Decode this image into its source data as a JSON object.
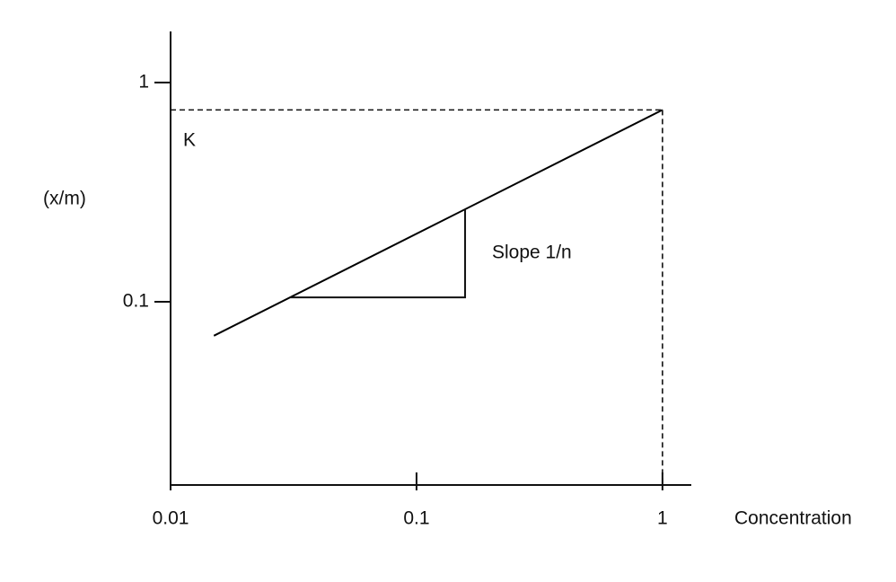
{
  "chart_data": {
    "type": "line",
    "x_label": "Concentration",
    "y_label": "(x/m)",
    "x": [
      0.015,
      1
    ],
    "values": [
      0.07,
      0.75
    ],
    "color": "#000000",
    "xlim": [
      0.01,
      1.31
    ],
    "ylim": [
      0.0146,
      1.71
    ],
    "log_x": true,
    "log_y": true,
    "xticks": [
      0.01,
      0.1,
      1
    ],
    "yticks": [
      0.1,
      1
    ],
    "annotations": [
      "K",
      "Slope 1/n"
    ]
  }
}
